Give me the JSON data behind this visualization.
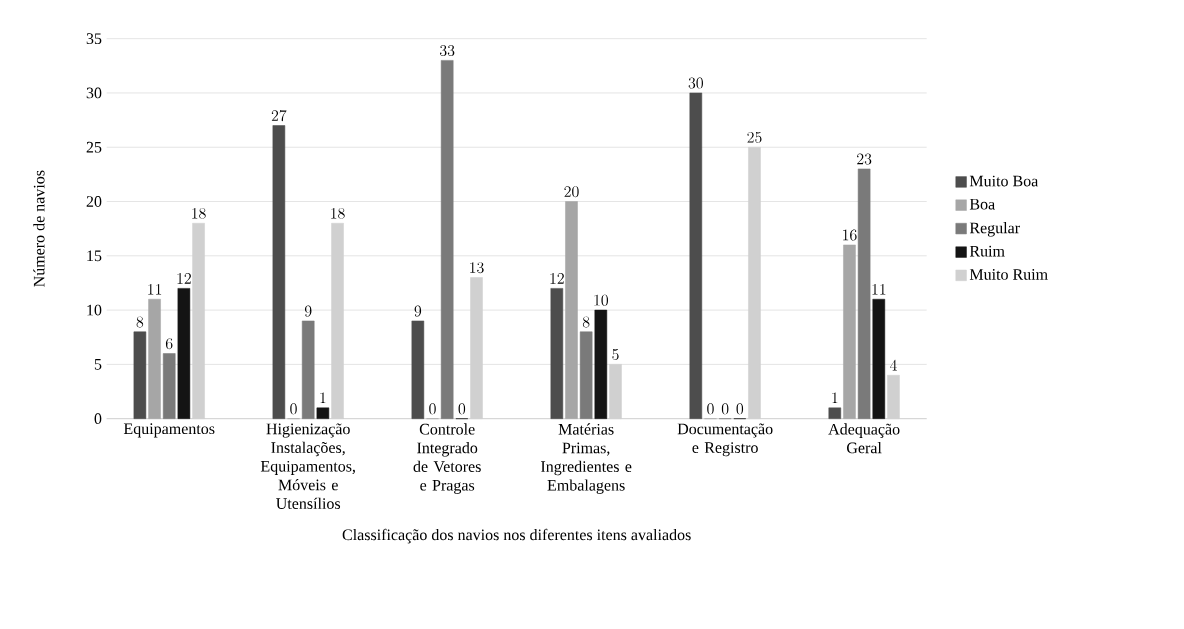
{
  "chart_data": {
    "type": "bar",
    "xlabel": "Classificação dos navios nos diferentes itens avaliados",
    "ylabel": "Número de navios",
    "categories": [
      "Equipamentos",
      "Higienização Instalações, Equipamentos, Móveis e Utensílios",
      "Controle Integrado de Vetores e Pragas",
      "Matérias Primas, Ingredientes e Embalagens",
      "Documentação e Registro",
      "Adequação Geral"
    ],
    "series": [
      {
        "name": "Muito Boa",
        "color": "#4d4d4d",
        "values": [
          8,
          27,
          9,
          12,
          30,
          1
        ]
      },
      {
        "name": "Boa",
        "color": "#a6a6a6",
        "values": [
          11,
          0,
          0,
          20,
          0,
          16
        ]
      },
      {
        "name": "Regular",
        "color": "#7a7a7a",
        "values": [
          6,
          9,
          33,
          8,
          0,
          23
        ]
      },
      {
        "name": "Ruim",
        "color": "#141414",
        "values": [
          12,
          1,
          0,
          10,
          0,
          11
        ]
      },
      {
        "name": "Muito Ruim",
        "color": "#d0d0d0",
        "values": [
          18,
          18,
          13,
          5,
          25,
          4
        ]
      }
    ],
    "ylim": [
      0,
      35
    ],
    "yticks": [
      0,
      5,
      10,
      15,
      20,
      25,
      30,
      35
    ],
    "grid": "y",
    "legend": "right",
    "data_labels": true
  }
}
